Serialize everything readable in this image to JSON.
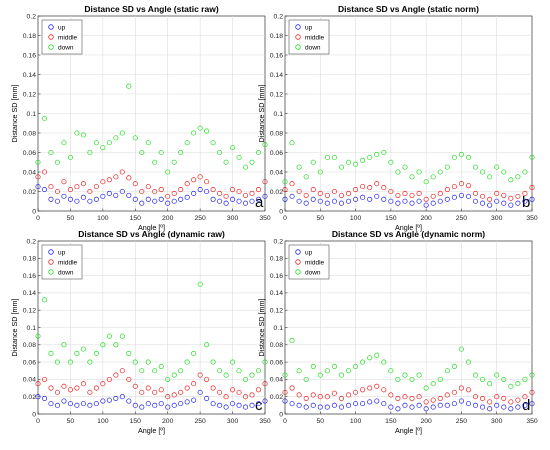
{
  "series_colors": {
    "up": "#2222ee",
    "middle": "#ee2222",
    "down": "#22dd22"
  },
  "chart_data": [
    {
      "type": "scatter",
      "panel_label": "a",
      "title": "Distance SD vs Angle (static raw)",
      "xlabel": "Angle [º]",
      "ylabel": "Distance SD [mm]",
      "xlim": [
        0,
        350
      ],
      "ylim": [
        0,
        0.2
      ],
      "xticks": [
        "0",
        "50",
        "100",
        "150",
        "200",
        "250",
        "300",
        "350"
      ],
      "yticks": [
        "0",
        "0.02",
        "0.04",
        "0.06",
        "0.08",
        "0.1",
        "0.12",
        "0.14",
        "0.16",
        "0.18",
        "0.2"
      ],
      "legend": {
        "position": "top-left",
        "entries": [
          "up",
          "middle",
          "down"
        ]
      },
      "series": [
        {
          "name": "up",
          "x": [
            0,
            10,
            20,
            30,
            40,
            50,
            60,
            70,
            80,
            90,
            100,
            110,
            120,
            130,
            140,
            150,
            160,
            170,
            180,
            190,
            200,
            210,
            220,
            230,
            240,
            250,
            260,
            270,
            280,
            290,
            300,
            310,
            320,
            330,
            340,
            350
          ],
          "y": [
            0.025,
            0.022,
            0.012,
            0.01,
            0.015,
            0.012,
            0.01,
            0.014,
            0.01,
            0.012,
            0.015,
            0.018,
            0.016,
            0.02,
            0.016,
            0.012,
            0.008,
            0.012,
            0.01,
            0.012,
            0.008,
            0.01,
            0.012,
            0.014,
            0.018,
            0.022,
            0.02,
            0.012,
            0.01,
            0.008,
            0.012,
            0.01,
            0.008,
            0.01,
            0.012,
            0.015
          ]
        },
        {
          "name": "middle",
          "x": [
            0,
            10,
            20,
            30,
            40,
            50,
            60,
            70,
            80,
            90,
            100,
            110,
            120,
            130,
            140,
            150,
            160,
            170,
            180,
            190,
            200,
            210,
            220,
            230,
            240,
            250,
            260,
            270,
            280,
            290,
            300,
            310,
            320,
            330,
            340,
            350
          ],
          "y": [
            0.035,
            0.04,
            0.025,
            0.02,
            0.03,
            0.022,
            0.025,
            0.028,
            0.02,
            0.025,
            0.03,
            0.032,
            0.035,
            0.04,
            0.034,
            0.028,
            0.02,
            0.025,
            0.02,
            0.022,
            0.015,
            0.018,
            0.022,
            0.028,
            0.032,
            0.035,
            0.03,
            0.022,
            0.018,
            0.015,
            0.022,
            0.02,
            0.016,
            0.018,
            0.022,
            0.03
          ]
        },
        {
          "name": "down",
          "x": [
            0,
            10,
            20,
            30,
            40,
            50,
            60,
            70,
            80,
            90,
            100,
            110,
            120,
            130,
            140,
            150,
            160,
            170,
            180,
            190,
            200,
            210,
            220,
            230,
            240,
            250,
            260,
            270,
            280,
            290,
            300,
            310,
            320,
            330,
            340,
            350
          ],
          "y": [
            0.05,
            0.095,
            0.06,
            0.05,
            0.07,
            0.055,
            0.08,
            0.078,
            0.06,
            0.07,
            0.065,
            0.07,
            0.075,
            0.08,
            0.128,
            0.075,
            0.06,
            0.07,
            0.05,
            0.06,
            0.04,
            0.05,
            0.06,
            0.07,
            0.08,
            0.085,
            0.082,
            0.07,
            0.06,
            0.05,
            0.065,
            0.055,
            0.045,
            0.05,
            0.06,
            0.068
          ]
        }
      ]
    },
    {
      "type": "scatter",
      "panel_label": "b",
      "title": "Distance SD vs Angle (static norm)",
      "xlabel": "Angle [º]",
      "ylabel": "Distance SD [mm]",
      "xlim": [
        0,
        350
      ],
      "ylim": [
        0,
        0.2
      ],
      "xticks": [
        "0",
        "50",
        "100",
        "150",
        "200",
        "250",
        "300",
        "350"
      ],
      "yticks": [
        "0",
        "0.02",
        "0.04",
        "0.06",
        "0.08",
        "0.1",
        "0.12",
        "0.14",
        "0.16",
        "0.18",
        "0.2"
      ],
      "legend": {
        "position": "top-left",
        "entries": [
          "up",
          "middle",
          "down"
        ]
      },
      "series": [
        {
          "name": "up",
          "x": [
            0,
            10,
            20,
            30,
            40,
            50,
            60,
            70,
            80,
            90,
            100,
            110,
            120,
            130,
            140,
            150,
            160,
            170,
            180,
            190,
            200,
            210,
            220,
            230,
            240,
            250,
            260,
            270,
            280,
            290,
            300,
            310,
            320,
            330,
            340,
            350
          ],
          "y": [
            0.012,
            0.015,
            0.01,
            0.008,
            0.012,
            0.01,
            0.008,
            0.01,
            0.008,
            0.01,
            0.012,
            0.014,
            0.012,
            0.015,
            0.012,
            0.01,
            0.008,
            0.01,
            0.008,
            0.01,
            0.006,
            0.008,
            0.01,
            0.012,
            0.014,
            0.016,
            0.015,
            0.01,
            0.008,
            0.006,
            0.01,
            0.008,
            0.006,
            0.008,
            0.01,
            0.012
          ]
        },
        {
          "name": "middle",
          "x": [
            0,
            10,
            20,
            30,
            40,
            50,
            60,
            70,
            80,
            90,
            100,
            110,
            120,
            130,
            140,
            150,
            160,
            170,
            180,
            190,
            200,
            210,
            220,
            230,
            240,
            250,
            260,
            270,
            280,
            290,
            300,
            310,
            320,
            330,
            340,
            350
          ],
          "y": [
            0.022,
            0.028,
            0.02,
            0.016,
            0.022,
            0.018,
            0.016,
            0.02,
            0.016,
            0.018,
            0.022,
            0.025,
            0.024,
            0.028,
            0.024,
            0.02,
            0.016,
            0.018,
            0.016,
            0.018,
            0.012,
            0.015,
            0.018,
            0.022,
            0.025,
            0.028,
            0.026,
            0.018,
            0.015,
            0.012,
            0.018,
            0.016,
            0.013,
            0.015,
            0.018,
            0.024
          ]
        },
        {
          "name": "down",
          "x": [
            0,
            10,
            20,
            30,
            40,
            50,
            60,
            70,
            80,
            90,
            100,
            110,
            120,
            130,
            140,
            150,
            160,
            170,
            180,
            190,
            200,
            210,
            220,
            230,
            240,
            250,
            260,
            270,
            280,
            290,
            300,
            310,
            320,
            330,
            340,
            350
          ],
          "y": [
            0.03,
            0.07,
            0.045,
            0.035,
            0.05,
            0.04,
            0.055,
            0.055,
            0.045,
            0.05,
            0.048,
            0.052,
            0.055,
            0.058,
            0.06,
            0.05,
            0.04,
            0.045,
            0.035,
            0.04,
            0.03,
            0.035,
            0.04,
            0.045,
            0.055,
            0.058,
            0.055,
            0.045,
            0.04,
            0.035,
            0.045,
            0.04,
            0.032,
            0.035,
            0.04,
            0.055
          ]
        }
      ]
    },
    {
      "type": "scatter",
      "panel_label": "c",
      "title": "Distance SD vs Angle (dynamic raw)",
      "xlabel": "Angle [º]",
      "ylabel": "Distance SD [mm]",
      "xlim": [
        0,
        350
      ],
      "ylim": [
        0,
        0.2
      ],
      "xticks": [
        "0",
        "50",
        "100",
        "150",
        "200",
        "250",
        "300",
        "350"
      ],
      "yticks": [
        "0",
        "0.02",
        "0.04",
        "0.06",
        "0.08",
        "0.1",
        "0.12",
        "0.14",
        "0.16",
        "0.18",
        "0.2"
      ],
      "legend": {
        "position": "top-left",
        "entries": [
          "up",
          "middle",
          "down"
        ]
      },
      "series": [
        {
          "name": "up",
          "x": [
            0,
            10,
            20,
            30,
            40,
            50,
            60,
            70,
            80,
            90,
            100,
            110,
            120,
            130,
            140,
            150,
            160,
            170,
            180,
            190,
            200,
            210,
            220,
            230,
            240,
            250,
            260,
            270,
            280,
            290,
            300,
            310,
            320,
            330,
            340,
            350
          ],
          "y": [
            0.02,
            0.018,
            0.012,
            0.01,
            0.015,
            0.012,
            0.01,
            0.012,
            0.01,
            0.012,
            0.015,
            0.016,
            0.018,
            0.02,
            0.015,
            0.01,
            0.008,
            0.012,
            0.01,
            0.012,
            0.008,
            0.01,
            0.012,
            0.014,
            0.016,
            0.025,
            0.018,
            0.012,
            0.01,
            0.008,
            0.012,
            0.01,
            0.008,
            0.01,
            0.012,
            0.015
          ]
        },
        {
          "name": "middle",
          "x": [
            0,
            10,
            20,
            30,
            40,
            50,
            60,
            70,
            80,
            90,
            100,
            110,
            120,
            130,
            140,
            150,
            160,
            170,
            180,
            190,
            200,
            210,
            220,
            230,
            240,
            250,
            260,
            270,
            280,
            290,
            300,
            310,
            320,
            330,
            340,
            350
          ],
          "y": [
            0.035,
            0.04,
            0.03,
            0.025,
            0.032,
            0.028,
            0.03,
            0.035,
            0.025,
            0.03,
            0.035,
            0.04,
            0.045,
            0.05,
            0.04,
            0.032,
            0.025,
            0.03,
            0.025,
            0.028,
            0.02,
            0.022,
            0.025,
            0.03,
            0.035,
            0.045,
            0.04,
            0.03,
            0.025,
            0.02,
            0.028,
            0.025,
            0.02,
            0.022,
            0.028,
            0.035
          ]
        },
        {
          "name": "down",
          "x": [
            0,
            10,
            20,
            30,
            40,
            50,
            60,
            70,
            80,
            90,
            100,
            110,
            120,
            130,
            140,
            150,
            160,
            170,
            180,
            190,
            200,
            210,
            220,
            230,
            240,
            250,
            260,
            270,
            280,
            290,
            300,
            310,
            320,
            330,
            340,
            350
          ],
          "y": [
            0.09,
            0.132,
            0.07,
            0.06,
            0.08,
            0.06,
            0.07,
            0.075,
            0.06,
            0.07,
            0.08,
            0.09,
            0.08,
            0.09,
            0.07,
            0.06,
            0.05,
            0.06,
            0.05,
            0.055,
            0.04,
            0.045,
            0.05,
            0.06,
            0.07,
            0.15,
            0.08,
            0.06,
            0.05,
            0.045,
            0.06,
            0.05,
            0.04,
            0.045,
            0.05,
            0.06
          ]
        }
      ]
    },
    {
      "type": "scatter",
      "panel_label": "d",
      "title": "Distance SD vs Angle (dynamic norm)",
      "xlabel": "Angle [º]",
      "ylabel": "Distance SD [mm]",
      "xlim": [
        0,
        350
      ],
      "ylim": [
        0,
        0.2
      ],
      "xticks": [
        "0",
        "50",
        "100",
        "150",
        "200",
        "250",
        "300",
        "350"
      ],
      "yticks": [
        "0",
        "0.02",
        "0.04",
        "0.06",
        "0.08",
        "0.1",
        "0.12",
        "0.14",
        "0.16",
        "0.18",
        "0.2"
      ],
      "legend": {
        "position": "top-left",
        "entries": [
          "up",
          "middle",
          "down"
        ]
      },
      "series": [
        {
          "name": "up",
          "x": [
            0,
            10,
            20,
            30,
            40,
            50,
            60,
            70,
            80,
            90,
            100,
            110,
            120,
            130,
            140,
            150,
            160,
            170,
            180,
            190,
            200,
            210,
            220,
            230,
            240,
            250,
            260,
            270,
            280,
            290,
            300,
            310,
            320,
            330,
            340,
            350
          ],
          "y": [
            0.015,
            0.012,
            0.01,
            0.008,
            0.01,
            0.008,
            0.008,
            0.01,
            0.008,
            0.01,
            0.012,
            0.012,
            0.014,
            0.015,
            0.012,
            0.008,
            0.006,
            0.01,
            0.008,
            0.01,
            0.006,
            0.008,
            0.01,
            0.01,
            0.012,
            0.015,
            0.012,
            0.01,
            0.008,
            0.006,
            0.01,
            0.008,
            0.006,
            0.008,
            0.01,
            0.012
          ]
        },
        {
          "name": "middle",
          "x": [
            0,
            10,
            20,
            30,
            40,
            50,
            60,
            70,
            80,
            90,
            100,
            110,
            120,
            130,
            140,
            150,
            160,
            170,
            180,
            190,
            200,
            210,
            220,
            230,
            240,
            250,
            260,
            270,
            280,
            290,
            300,
            310,
            320,
            330,
            340,
            350
          ],
          "y": [
            0.025,
            0.03,
            0.022,
            0.018,
            0.022,
            0.02,
            0.02,
            0.024,
            0.018,
            0.022,
            0.025,
            0.028,
            0.03,
            0.032,
            0.028,
            0.022,
            0.018,
            0.02,
            0.018,
            0.02,
            0.014,
            0.016,
            0.018,
            0.022,
            0.025,
            0.03,
            0.028,
            0.02,
            0.018,
            0.014,
            0.02,
            0.018,
            0.014,
            0.016,
            0.02,
            0.025
          ]
        },
        {
          "name": "down",
          "x": [
            0,
            10,
            20,
            30,
            40,
            50,
            60,
            70,
            80,
            90,
            100,
            110,
            120,
            130,
            140,
            150,
            160,
            170,
            180,
            190,
            200,
            210,
            220,
            230,
            240,
            250,
            260,
            270,
            280,
            290,
            300,
            310,
            320,
            330,
            340,
            350
          ],
          "y": [
            0.045,
            0.085,
            0.05,
            0.04,
            0.055,
            0.045,
            0.05,
            0.055,
            0.045,
            0.05,
            0.055,
            0.06,
            0.065,
            0.068,
            0.06,
            0.05,
            0.04,
            0.045,
            0.04,
            0.045,
            0.03,
            0.035,
            0.04,
            0.05,
            0.055,
            0.075,
            0.06,
            0.045,
            0.04,
            0.035,
            0.045,
            0.04,
            0.032,
            0.035,
            0.04,
            0.045
          ]
        }
      ]
    }
  ]
}
